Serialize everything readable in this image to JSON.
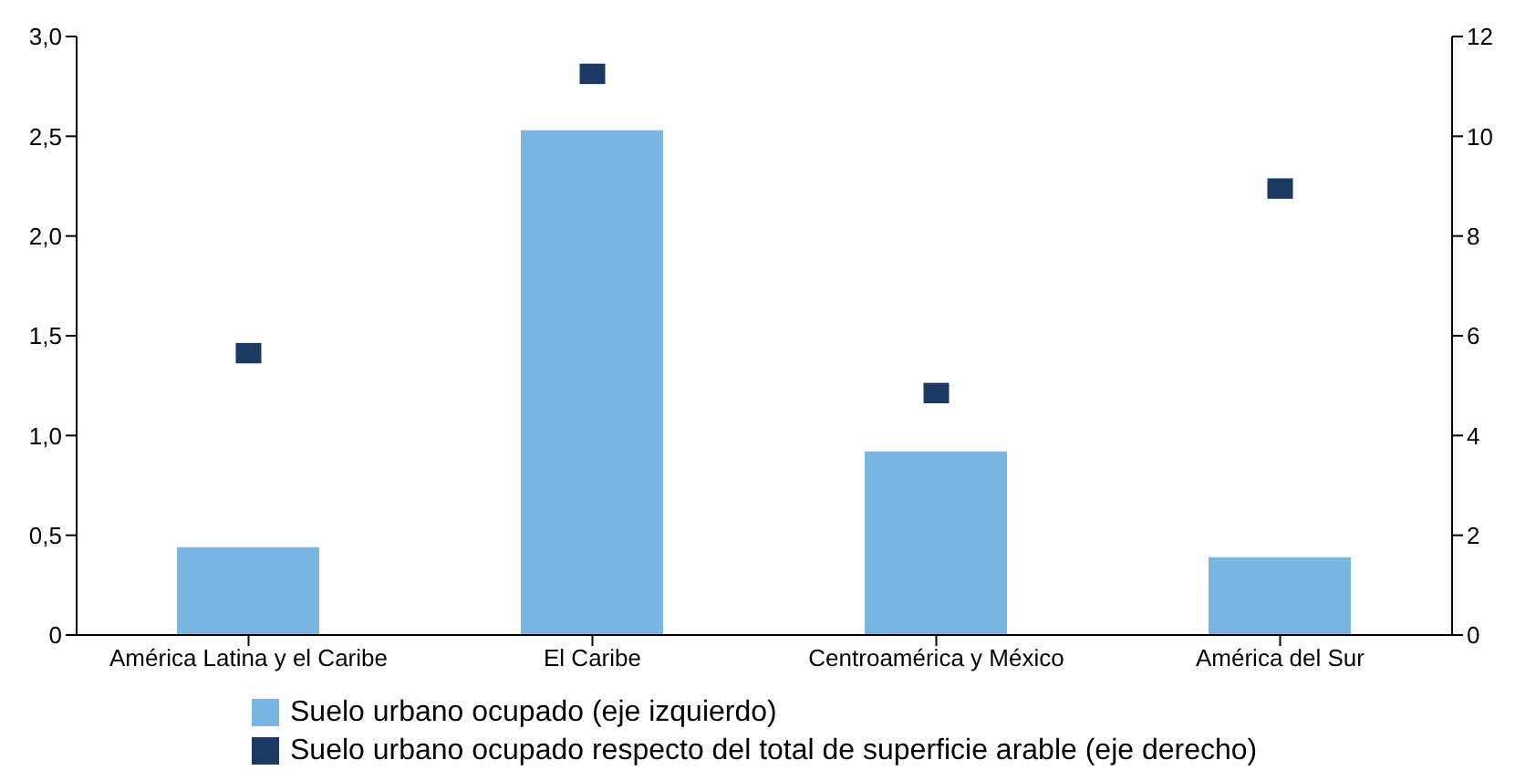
{
  "chart_data": {
    "type": "bar",
    "categories": [
      "América Latina y el Caribe",
      "El Caribe",
      "Centroamérica y México",
      "América del Sur"
    ],
    "series": [
      {
        "name": "Suelo urbano ocupado (eje izquierdo)",
        "color": "#7ab6e2",
        "values": [
          0.44,
          2.53,
          0.92,
          0.39
        ]
      },
      {
        "name": "Suelo urbano ocupado respecto del total de superficie arable (eje derecho)",
        "type": "scatter",
        "axis": "y2",
        "color": "#1b3a63",
        "values": [
          5.6,
          11.2,
          4.8,
          8.9
        ]
      }
    ],
    "ylim": [
      0,
      3
    ],
    "yticks": [
      {
        "value": 0,
        "label": "0"
      },
      {
        "value": 0.5,
        "label": "0,5"
      },
      {
        "value": 1,
        "label": "1,0"
      },
      {
        "value": 1.5,
        "label": "1,5"
      },
      {
        "value": 2,
        "label": "2,0"
      },
      {
        "value": 2.5,
        "label": "2,5"
      },
      {
        "value": 3,
        "label": "3,0"
      }
    ],
    "y2lim": [
      0,
      12
    ],
    "y2ticks": [
      0,
      2,
      4,
      6,
      8,
      10,
      12
    ],
    "marker": "square",
    "legend": "bottom",
    "grid": false
  }
}
